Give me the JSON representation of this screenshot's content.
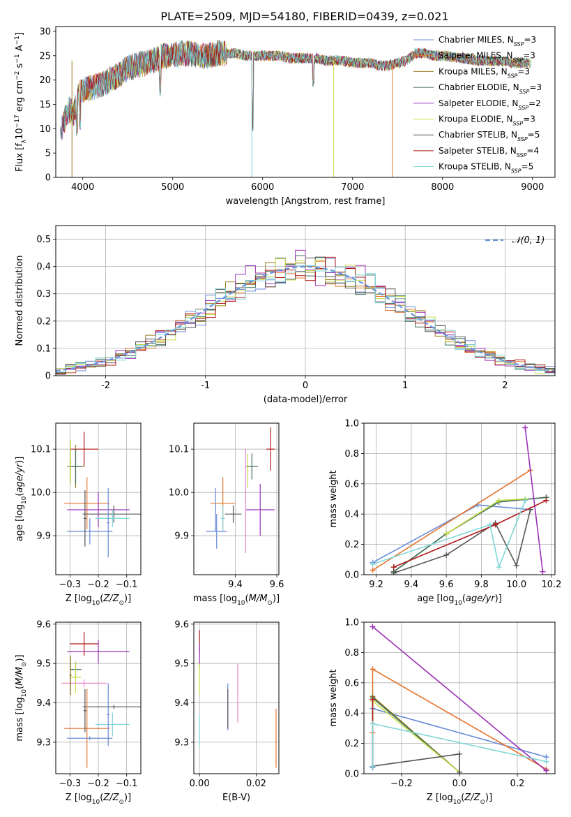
{
  "figure": {
    "title": "PLATE=2509, MJD=54180, FIBERID=0439, z=0.021"
  },
  "chart_data": [
    {
      "id": "spectrum",
      "type": "line",
      "xlabel": "wavelength [Angstrom, rest frame]",
      "ylabel": "Flux [f",
      "ylabel_parts": [
        "Flux [f",
        "λ",
        "10",
        "−17",
        " erg cm",
        "−2",
        " s",
        "−1",
        " A",
        "−1",
        "]"
      ],
      "xlim": [
        3700,
        9250
      ],
      "ylim": [
        0,
        31
      ],
      "xticks": [
        4000,
        5000,
        6000,
        7000,
        8000,
        9000
      ],
      "yticks": [
        0,
        5,
        10,
        15,
        20,
        25,
        30
      ],
      "grid": false,
      "legend_position": "upper-right",
      "continuum_x": [
        3750,
        3800,
        3850,
        3900,
        3950,
        4000,
        4100,
        4200,
        4300,
        4400,
        4500,
        4600,
        4700,
        4800,
        4900,
        5000,
        5100,
        5200,
        5300,
        5400,
        5500,
        5600,
        5700,
        5800,
        5900,
        6000,
        6100,
        6200,
        6300,
        6400,
        6500,
        6600,
        6700,
        6800,
        6900,
        7000,
        7100,
        7200,
        7300,
        7400,
        7500,
        7600,
        7700,
        7800,
        7900,
        8000,
        8200,
        8400,
        8600,
        8800,
        9000,
        9200
      ],
      "continuum_y": [
        9,
        12,
        14,
        13,
        17,
        18,
        18.5,
        19,
        20,
        21,
        22.5,
        23,
        23.5,
        24,
        25,
        25,
        25.5,
        25.5,
        25,
        25,
        25.5,
        25.5,
        25.5,
        25,
        25,
        25,
        25,
        25,
        24.5,
        24.5,
        24.5,
        24.5,
        24,
        24,
        24,
        23.5,
        23.5,
        23.5,
        23,
        23,
        23.5,
        24,
        25.5,
        25.5,
        25,
        25,
        24.5,
        24,
        24,
        23.5,
        23.5,
        23
      ],
      "series": [
        {
          "name": "Chabrier MILES, N",
          "ssp": "3",
          "color": "#6a8bd8"
        },
        {
          "name": "Salpeter MILES, N",
          "ssp": "3",
          "color": "#e4732a"
        },
        {
          "name": "Kroupa MILES, N",
          "ssp": "3",
          "color": "#9b7d1e"
        },
        {
          "name": "Chabrier ELODIE, N",
          "ssp": "3",
          "color": "#3f6f5f"
        },
        {
          "name": "Salpeter ELODIE, N",
          "ssp": "2",
          "color": "#9b30b8"
        },
        {
          "name": "Kroupa ELODIE, N",
          "ssp": "3",
          "color": "#c8dd4a"
        },
        {
          "name": "Chabrier STELIB, N",
          "ssp": "5",
          "color": "#555555"
        },
        {
          "name": "Salpeter STELIB, N",
          "ssp": "4",
          "color": "#b01818"
        },
        {
          "name": "Kroupa STELIB, N",
          "ssp": "5",
          "color": "#7fd6d9"
        }
      ]
    },
    {
      "id": "residuals",
      "type": "line",
      "xlabel": "(data-model)/error",
      "ylabel": "Normed distribution",
      "xlim": [
        -2.5,
        2.5
      ],
      "ylim": [
        0,
        0.55
      ],
      "xticks": [
        -2,
        -1,
        0,
        1,
        2
      ],
      "yticks": [
        0,
        0.1,
        0.2,
        0.3,
        0.4,
        0.5
      ],
      "grid": true,
      "legend_position": "upper-right",
      "legend_label": "𝒩(0, 1)",
      "reference_curve": {
        "name": "𝒩(0, 1)",
        "mu": 0,
        "sigma": 1,
        "color": "#6a95dd"
      },
      "bin_width": 0.1
    },
    {
      "id": "age-vs-z",
      "type": "scatter",
      "xlabel": "Z [log",
      "xlabel_parts": [
        "Z [log",
        "10",
        "(Z/Z",
        "⊙",
        ")]"
      ],
      "ylabel": "age  [log",
      "ylabel_parts": [
        "age  [log",
        "10",
        "(age/yr)]"
      ],
      "xlim": [
        -0.35,
        -0.05
      ],
      "ylim": [
        9.81,
        10.16
      ],
      "xticks": [
        -0.3,
        -0.2,
        -0.1
      ],
      "xticklabels": [
        "−0.3",
        "−0.2",
        "−0.1"
      ],
      "yticks": [
        9.9,
        10.0,
        10.1
      ],
      "yticklabels": [
        "9.9",
        "10.0",
        "10.1"
      ],
      "grid": true,
      "points": [
        {
          "x": -0.25,
          "y": 10.1,
          "xerr": 0.05,
          "yerr": 0.04,
          "color": "#b01818"
        },
        {
          "x": -0.28,
          "y": 10.06,
          "xerr": 0.03,
          "yerr": 0.05,
          "color": "#9b7d1e"
        },
        {
          "x": -0.28,
          "y": 10.06,
          "xerr": 0.02,
          "yerr": 0.04,
          "color": "#3f6f5f"
        },
        {
          "x": -0.24,
          "y": 9.975,
          "xerr": 0.08,
          "yerr": 0.06,
          "color": "#e4732a"
        },
        {
          "x": -0.2,
          "y": 9.96,
          "xerr": 0.11,
          "yerr": 0.04,
          "color": "#9b30b8"
        },
        {
          "x": -0.145,
          "y": 9.95,
          "xerr": 0.11,
          "yerr": 0.02,
          "color": "#555555"
        },
        {
          "x": -0.15,
          "y": 9.94,
          "xerr": 0.06,
          "yerr": 0.02,
          "color": "#7fd6d9"
        },
        {
          "x": -0.23,
          "y": 9.91,
          "xerr": 0.08,
          "yerr": 0.03,
          "color": "#6a8bd8"
        },
        {
          "x": -0.165,
          "y": 9.93,
          "xerr": 0.005,
          "yerr": 0.08,
          "color": "#6a8bd8"
        },
        {
          "x": -0.247,
          "y": 9.94,
          "xerr": 0.005,
          "yerr": 0.065,
          "color": "#555555"
        },
        {
          "x": -0.298,
          "y": 10.07,
          "xerr": 0.004,
          "yerr": 0.05,
          "color": "#c8dd4a"
        }
      ]
    },
    {
      "id": "age-vs-mass",
      "type": "scatter",
      "xlabel": "mass [log",
      "xlabel_parts": [
        "mass [log",
        "10",
        "(M/M",
        "⊙",
        ")]"
      ],
      "ylabel": "",
      "xlim": [
        9.2,
        9.61
      ],
      "ylim": [
        9.81,
        10.16
      ],
      "xticks": [
        9.4,
        9.6
      ],
      "xticklabels": [
        "9.4",
        "9.6"
      ],
      "yticks": [
        9.9,
        10.0,
        10.1
      ],
      "yticklabels": [
        "9.9",
        "10.0",
        "10.1"
      ],
      "grid": true,
      "points": [
        {
          "x": 9.57,
          "y": 10.1,
          "xerr": 0.02,
          "yerr": 0.05,
          "color": "#b01818"
        },
        {
          "x": 9.48,
          "y": 10.06,
          "xerr": 0.03,
          "yerr": 0.03,
          "color": "#3f6f5f"
        },
        {
          "x": 9.46,
          "y": 10.05,
          "xerr": 0.004,
          "yerr": 0.04,
          "color": "#c8dd4a"
        },
        {
          "x": 9.34,
          "y": 9.975,
          "xerr": 0.06,
          "yerr": 0.06,
          "color": "#e4732a"
        },
        {
          "x": 9.52,
          "y": 9.96,
          "xerr": 0.07,
          "yerr": 0.06,
          "color": "#9b30b8"
        },
        {
          "x": 9.39,
          "y": 9.95,
          "xerr": 0.04,
          "yerr": 0.02,
          "color": "#555555"
        },
        {
          "x": 9.34,
          "y": 9.94,
          "xerr": 0.01,
          "yerr": 0.03,
          "color": "#7fd6d9"
        },
        {
          "x": 9.31,
          "y": 9.91,
          "xerr": 0.05,
          "yerr": 0.04,
          "color": "#6a8bd8"
        },
        {
          "x": 9.305,
          "y": 9.96,
          "xerr": 0.003,
          "yerr": 0.05,
          "color": "#6a8bd8"
        },
        {
          "x": 9.45,
          "y": 9.98,
          "xerr": 0.003,
          "yerr": 0.12,
          "color": "#ea86c8"
        }
      ]
    },
    {
      "id": "massweight-vs-age",
      "type": "line",
      "xlabel": "age  [log",
      "xlabel_parts": [
        "age  [log",
        "10",
        "(age/yr)]"
      ],
      "ylabel": "mass weight",
      "xlim": [
        9.13,
        10.22
      ],
      "ylim": [
        0,
        1.0
      ],
      "xticks": [
        9.2,
        9.4,
        9.6,
        9.8,
        10.0,
        10.2
      ],
      "xticklabels": [
        "9.2",
        "9.4",
        "9.6",
        "9.8",
        "10.0",
        "10.2"
      ],
      "yticks": [
        0,
        0.2,
        0.4,
        0.6,
        0.8,
        1.0
      ],
      "yticklabels": [
        "0.0",
        "0.2",
        "0.4",
        "0.6",
        "0.8",
        "1.0"
      ],
      "grid": true,
      "series": [
        {
          "color": "#6a8bd8",
          "x": [
            9.18,
            9.78,
            10.08
          ],
          "y": [
            0.08,
            0.46,
            0.43
          ]
        },
        {
          "color": "#e4732a",
          "x": [
            9.18,
            10.08
          ],
          "y": [
            0.03,
            0.69
          ]
        },
        {
          "color": "#9b7d1e",
          "x": [
            9.3,
            9.6,
            9.9,
            10.17
          ],
          "y": [
            0.02,
            0.27,
            0.48,
            0.51
          ]
        },
        {
          "color": "#3f6f5f",
          "x": [
            9.3,
            9.6,
            9.9,
            10.17
          ],
          "y": [
            0.02,
            0.27,
            0.48,
            0.51
          ]
        },
        {
          "color": "#9b30b8",
          "x": [
            10.05,
            10.15
          ],
          "y": [
            0.97,
            0.02
          ]
        },
        {
          "color": "#c8dd4a",
          "x": [
            9.6,
            9.9,
            10.05
          ],
          "y": [
            0.27,
            0.49,
            0.5
          ]
        },
        {
          "color": "#555555",
          "x": [
            9.3,
            9.6,
            9.88,
            10.0,
            10.08
          ],
          "y": [
            0.01,
            0.13,
            0.34,
            0.06,
            0.43
          ]
        },
        {
          "color": "#b01818",
          "x": [
            9.3,
            9.88,
            10.17
          ],
          "y": [
            0.05,
            0.33,
            0.49
          ]
        },
        {
          "color": "#7fd6d9",
          "x": [
            9.18,
            9.85,
            9.9,
            10.05
          ],
          "y": [
            0.07,
            0.33,
            0.05,
            0.49
          ]
        }
      ]
    },
    {
      "id": "mass-vs-z",
      "type": "scatter",
      "xlabel": "Z [log",
      "xlabel_parts": [
        "Z [log",
        "10",
        "(Z/Z",
        "⊙",
        ")]"
      ],
      "ylabel": "mass [log",
      "ylabel_parts": [
        "mass [log",
        "10",
        "(M/M",
        "⊙",
        ")]"
      ],
      "xlim": [
        -0.35,
        -0.05
      ],
      "ylim": [
        9.22,
        9.605
      ],
      "xticks": [
        -0.3,
        -0.2,
        -0.1
      ],
      "xticklabels": [
        "−0.3",
        "−0.2",
        "−0.1"
      ],
      "yticks": [
        9.3,
        9.4,
        9.5,
        9.6
      ],
      "yticklabels": [
        "9.3",
        "9.4",
        "9.5",
        "9.6"
      ],
      "grid": true,
      "points": [
        {
          "x": -0.25,
          "y": 9.55,
          "xerr": 0.05,
          "yerr": 0.03,
          "color": "#b01818"
        },
        {
          "x": -0.2,
          "y": 9.53,
          "xerr": 0.11,
          "yerr": 0.03,
          "color": "#9b30b8"
        },
        {
          "x": -0.28,
          "y": 9.485,
          "xerr": 0.02,
          "yerr": 0.02,
          "color": "#3f6f5f"
        },
        {
          "x": -0.28,
          "y": 9.465,
          "xerr": 0.02,
          "yerr": 0.04,
          "color": "#c8dd4a"
        },
        {
          "x": -0.25,
          "y": 9.45,
          "xerr": 0.08,
          "yerr": 0.01,
          "color": "#ea86c8"
        },
        {
          "x": -0.145,
          "y": 9.39,
          "xerr": 0.11,
          "yerr": 0.005,
          "color": "#555555"
        },
        {
          "x": -0.15,
          "y": 9.345,
          "xerr": 0.06,
          "yerr": 0.03,
          "color": "#7fd6d9"
        },
        {
          "x": -0.24,
          "y": 9.335,
          "xerr": 0.08,
          "yerr": 0.1,
          "color": "#e4732a"
        },
        {
          "x": -0.23,
          "y": 9.31,
          "xerr": 0.08,
          "yerr": 0.005,
          "color": "#6a8bd8"
        },
        {
          "x": -0.165,
          "y": 9.37,
          "xerr": 0.005,
          "yerr": 0.08,
          "color": "#6a8bd8"
        },
        {
          "x": -0.247,
          "y": 9.38,
          "xerr": 0.005,
          "yerr": 0.055,
          "color": "#555555"
        },
        {
          "x": -0.298,
          "y": 9.47,
          "xerr": 0.004,
          "yerr": 0.05,
          "color": "#9b7d1e"
        }
      ]
    },
    {
      "id": "mass-vs-ebv",
      "type": "scatter",
      "xlabel": "E(B-V)",
      "ylabel": "",
      "xlim": [
        -0.002,
        0.028
      ],
      "ylim": [
        9.22,
        9.605
      ],
      "xticks": [
        0.0,
        0.02
      ],
      "xticklabels": [
        "0.00",
        "0.02"
      ],
      "yticks": [
        9.3,
        9.4,
        9.5,
        9.6
      ],
      "yticklabels": [
        "9.3",
        "9.4",
        "9.5",
        "9.6"
      ],
      "grid": true,
      "points": [
        {
          "x": 0.0,
          "y": 9.555,
          "xerr": 0,
          "yerr": 0.03,
          "color": "#b01818"
        },
        {
          "x": 0.0,
          "y": 9.52,
          "xerr": 0,
          "yerr": 0.03,
          "color": "#9b30b8"
        },
        {
          "x": 0.0,
          "y": 9.46,
          "xerr": 0,
          "yerr": 0.04,
          "color": "#c8dd4a"
        },
        {
          "x": 0.0,
          "y": 9.33,
          "xerr": 0,
          "yerr": 0.04,
          "color": "#7fd6d9"
        },
        {
          "x": 0.01,
          "y": 9.39,
          "xerr": 0,
          "yerr": 0.06,
          "color": "#6a8bd8"
        },
        {
          "x": 0.01,
          "y": 9.385,
          "xerr": 0,
          "yerr": 0.05,
          "color": "#555555"
        },
        {
          "x": 0.0135,
          "y": 9.425,
          "xerr": 0,
          "yerr": 0.075,
          "color": "#ea86c8"
        },
        {
          "x": 0.027,
          "y": 9.31,
          "xerr": 0,
          "yerr": 0.075,
          "color": "#e4732a"
        }
      ]
    },
    {
      "id": "massweight-vs-z",
      "type": "line",
      "xlabel": "Z [log",
      "xlabel_parts": [
        "Z [log",
        "10",
        "(Z/Z",
        "⊙",
        ")]"
      ],
      "ylabel": "mass weight",
      "xlim": [
        -0.33,
        0.33
      ],
      "ylim": [
        0,
        1.0
      ],
      "xticks": [
        -0.2,
        0.0,
        0.2
      ],
      "xticklabels": [
        "−0.2",
        "0.0",
        "0.2"
      ],
      "yticks": [
        0,
        0.2,
        0.4,
        0.6,
        0.8,
        1.0
      ],
      "yticklabels": [
        "0.0",
        "0.2",
        "0.4",
        "0.6",
        "0.8",
        "1.0"
      ],
      "grid": true,
      "series": [
        {
          "color": "#6a8bd8",
          "x": [
            -0.3,
            -0.3,
            0.3
          ],
          "y": [
            0.04,
            0.43,
            0.11
          ]
        },
        {
          "color": "#e4732a",
          "x": [
            -0.3,
            -0.3,
            0.3
          ],
          "y": [
            0.27,
            0.69,
            0.03
          ]
        },
        {
          "color": "#9b7d1e",
          "x": [
            -0.3,
            -0.3,
            0.0
          ],
          "y": [
            0.05,
            0.51,
            0.01
          ]
        },
        {
          "color": "#3f6f5f",
          "x": [
            -0.3,
            -0.3,
            0.0
          ],
          "y": [
            0.05,
            0.5,
            0.01
          ]
        },
        {
          "color": "#9b30b8",
          "x": [
            -0.3,
            0.3
          ],
          "y": [
            0.97,
            0.02
          ]
        },
        {
          "color": "#c8dd4a",
          "x": [
            -0.3,
            -0.3,
            0.0
          ],
          "y": [
            0.05,
            0.48,
            0.01
          ]
        },
        {
          "color": "#555555",
          "x": [
            -0.3,
            0.0,
            0.0
          ],
          "y": [
            0.05,
            0.13,
            0.01
          ]
        },
        {
          "color": "#b01818",
          "x": [
            -0.3,
            -0.3
          ],
          "y": [
            0.05,
            0.49
          ]
        },
        {
          "color": "#7fd6d9",
          "x": [
            -0.3,
            -0.3,
            0.3
          ],
          "y": [
            0.05,
            0.33,
            0.08
          ]
        }
      ]
    }
  ]
}
